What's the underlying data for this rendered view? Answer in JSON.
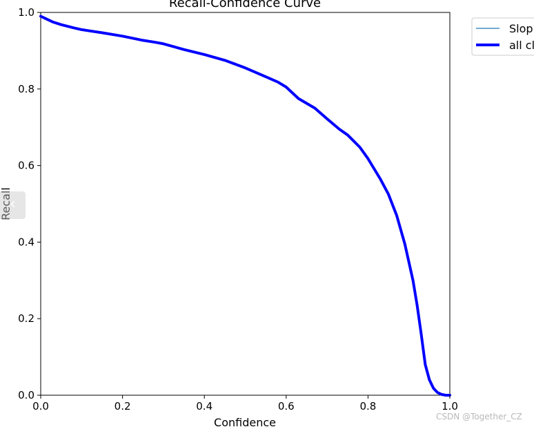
{
  "chart_data": {
    "type": "line",
    "title": "Recall-Confidence Curve",
    "xlabel": "Confidence",
    "ylabel": "Recall",
    "xlim": [
      0,
      1
    ],
    "ylim": [
      0,
      1
    ],
    "xticks": [
      "0.0",
      "0.2",
      "0.4",
      "0.6",
      "0.8",
      "1.0"
    ],
    "yticks": [
      "0.0",
      "0.2",
      "0.4",
      "0.6",
      "0.8",
      "1.0"
    ],
    "grid": false,
    "legend": "outside-top-right",
    "series": [
      {
        "name": "Slop",
        "color": "#1f77b4",
        "style": "thin",
        "x": [
          0.0,
          0.01,
          0.03,
          0.05,
          0.08,
          0.1,
          0.15,
          0.2,
          0.25,
          0.28,
          0.3,
          0.35,
          0.4,
          0.45,
          0.5,
          0.55,
          0.58,
          0.6,
          0.63,
          0.67,
          0.7,
          0.73,
          0.75,
          0.78,
          0.8,
          0.83,
          0.85,
          0.87,
          0.89,
          0.91,
          0.92,
          0.93,
          0.94,
          0.95,
          0.96,
          0.97,
          0.98,
          0.99,
          1.0
        ],
        "y": [
          0.99,
          0.985,
          0.975,
          0.968,
          0.96,
          0.955,
          0.947,
          0.938,
          0.927,
          0.922,
          0.918,
          0.903,
          0.89,
          0.875,
          0.855,
          0.832,
          0.818,
          0.805,
          0.775,
          0.75,
          0.722,
          0.695,
          0.68,
          0.648,
          0.618,
          0.565,
          0.525,
          0.47,
          0.395,
          0.3,
          0.235,
          0.16,
          0.085,
          0.045,
          0.022,
          0.008,
          0.003,
          0.0,
          0.0
        ]
      },
      {
        "name": "all cl",
        "color": "#0000ff",
        "style": "thick",
        "x": [
          0.0,
          0.01,
          0.03,
          0.05,
          0.08,
          0.1,
          0.15,
          0.2,
          0.25,
          0.28,
          0.3,
          0.35,
          0.4,
          0.45,
          0.5,
          0.55,
          0.58,
          0.6,
          0.63,
          0.67,
          0.7,
          0.73,
          0.75,
          0.78,
          0.8,
          0.83,
          0.85,
          0.87,
          0.89,
          0.91,
          0.92,
          0.93,
          0.94,
          0.95,
          0.96,
          0.97,
          0.98,
          0.99,
          1.0
        ],
        "y": [
          0.99,
          0.985,
          0.975,
          0.968,
          0.96,
          0.955,
          0.947,
          0.938,
          0.927,
          0.922,
          0.918,
          0.903,
          0.89,
          0.875,
          0.855,
          0.832,
          0.818,
          0.805,
          0.775,
          0.75,
          0.722,
          0.695,
          0.68,
          0.648,
          0.618,
          0.565,
          0.525,
          0.47,
          0.395,
          0.3,
          0.235,
          0.16,
          0.08,
          0.04,
          0.018,
          0.007,
          0.002,
          0.0,
          0.0
        ]
      }
    ]
  },
  "overlay": {
    "nav_arrow": "‹",
    "watermark": "CSDN @Together_CZ"
  }
}
